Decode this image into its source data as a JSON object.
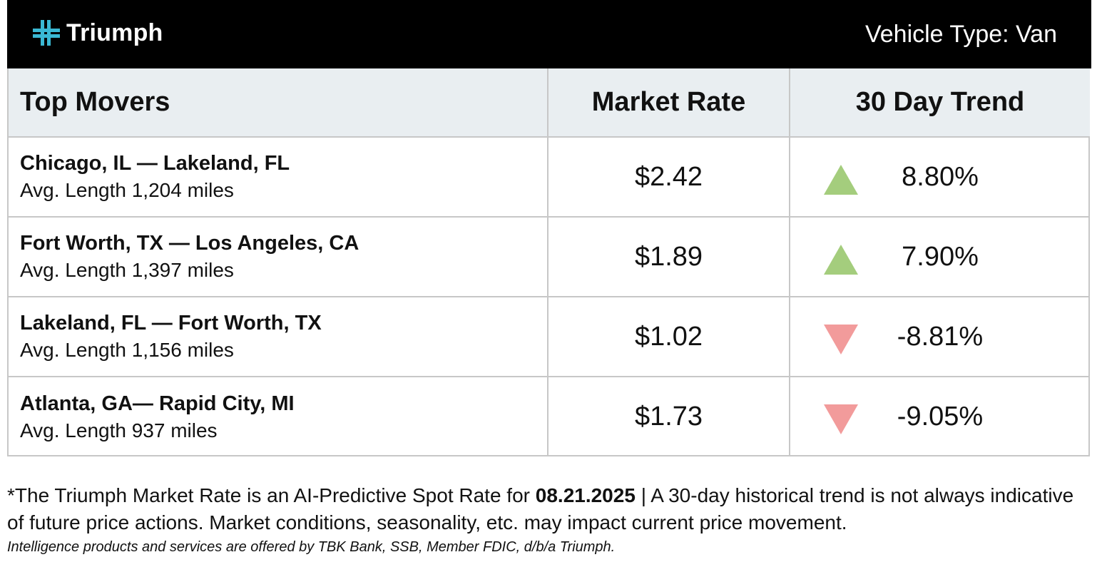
{
  "header": {
    "brand": "Triumph",
    "logo_icon": "cross-logo-icon",
    "vehicle_type": "Vehicle Type: Van",
    "logo_color": "#3ab8d3"
  },
  "table": {
    "columns": [
      "Top Movers",
      "Market Rate",
      "30 Day Trend"
    ],
    "rows": [
      {
        "route": "Chicago, IL — Lakeland, FL",
        "length": "Avg. Length 1,204 miles",
        "rate": "$2.42",
        "trend": "8.80%",
        "direction": "up"
      },
      {
        "route": "Fort Worth, TX — Los Angeles, CA",
        "length": "Avg. Length 1,397 miles",
        "rate": "$1.89",
        "trend": "7.90%",
        "direction": "up"
      },
      {
        "route": "Lakeland, FL — Fort Worth, TX",
        "length": "Avg. Length 1,156 miles",
        "rate": "$1.02",
        "trend": "-8.81%",
        "direction": "down"
      },
      {
        "route": "Atlanta, GA— Rapid City, MI",
        "length": "Avg. Length 937 miles",
        "rate": "$1.73",
        "trend": "-9.05%",
        "direction": "down"
      }
    ],
    "colors": {
      "up": "#a4cd7d",
      "down": "#f29b9b",
      "header_bg": "#e9eef1"
    }
  },
  "footnote": {
    "prefix": "*The Triumph Market Rate is an AI-Predictive Spot Rate for",
    "date": "08.21.2025",
    "suffix": "| A 30-day historical trend is not always indicative of future price actions. Market conditions, seasonality, etc. may impact current price movement.",
    "legal": "Intelligence products and services are offered by TBK Bank, SSB, Member FDIC, d/b/a Triumph."
  }
}
